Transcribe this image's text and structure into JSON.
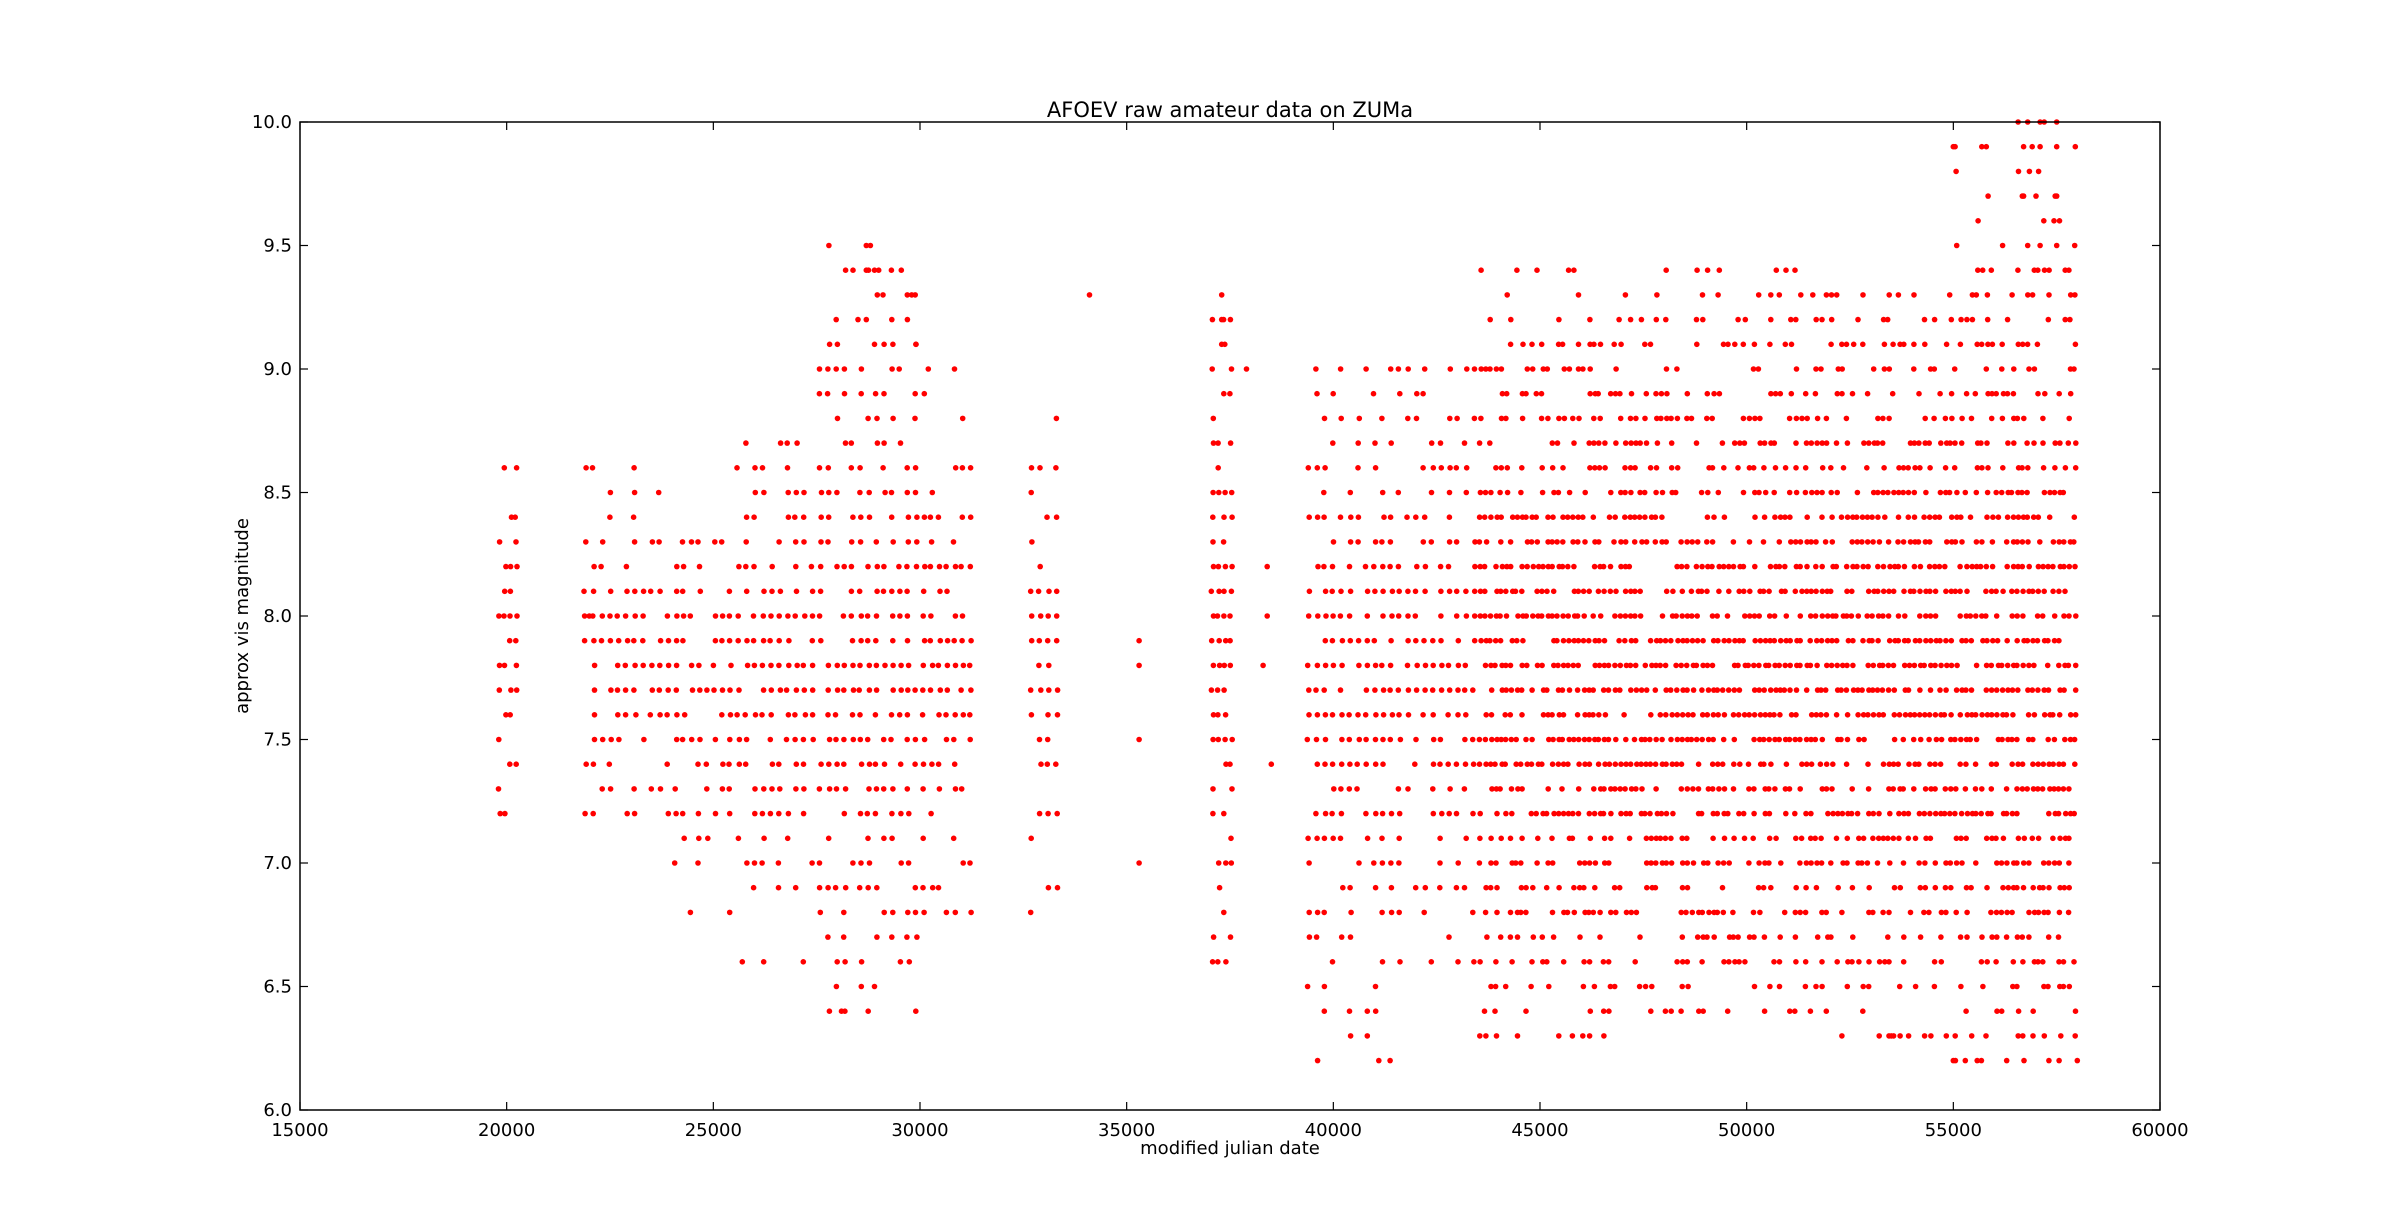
{
  "chart_data": {
    "type": "scatter",
    "title": "AFOEV raw amateur data on ZUMa",
    "xlabel": "modified julian date",
    "ylabel": "approx vis magnitude",
    "xlim": [
      15000,
      60000
    ],
    "ylim": [
      6.0,
      10.0
    ],
    "xticks": [
      15000,
      20000,
      25000,
      30000,
      35000,
      40000,
      45000,
      50000,
      55000,
      60000
    ],
    "xtick_labels": [
      "15000",
      "20000",
      "25000",
      "30000",
      "35000",
      "40000",
      "45000",
      "50000",
      "55000",
      "60000"
    ],
    "yticks": [
      6.0,
      6.5,
      7.0,
      7.5,
      8.0,
      8.5,
      9.0,
      9.5,
      10.0
    ],
    "ytick_labels": [
      "6.0",
      "6.5",
      "7.0",
      "7.5",
      "8.0",
      "8.5",
      "9.0",
      "9.5",
      "10.0"
    ],
    "grid": false,
    "legend": "none",
    "marker_color": "#ff0000",
    "segments": [
      {
        "x_start": 19750,
        "x_end": 20300,
        "y_min": 7.2,
        "y_max": 8.6
      },
      {
        "x_start": 21800,
        "x_end": 24000,
        "y_min": 7.2,
        "y_max": 8.6
      },
      {
        "x_start": 24000,
        "x_end": 25500,
        "y_min": 6.8,
        "y_max": 8.3
      },
      {
        "x_start": 25500,
        "x_end": 27500,
        "y_min": 6.6,
        "y_max": 8.7
      },
      {
        "x_start": 27500,
        "x_end": 30000,
        "y_min": 6.4,
        "y_max": 9.5
      },
      {
        "x_start": 30000,
        "x_end": 31300,
        "y_min": 6.8,
        "y_max": 9.0
      },
      {
        "x_start": 32600,
        "x_end": 33400,
        "y_min": 6.8,
        "y_max": 8.8
      },
      {
        "x_start": 37000,
        "x_end": 37600,
        "y_min": 6.6,
        "y_max": 9.3
      },
      {
        "x_start": 39300,
        "x_end": 41500,
        "y_min": 6.2,
        "y_max": 9.0
      },
      {
        "x_start": 41500,
        "x_end": 43500,
        "y_min": 6.6,
        "y_max": 9.0
      },
      {
        "x_start": 43500,
        "x_end": 47500,
        "y_min": 6.3,
        "y_max": 9.4
      },
      {
        "x_start": 47500,
        "x_end": 51500,
        "y_min": 6.4,
        "y_max": 9.4
      },
      {
        "x_start": 51500,
        "x_end": 55000,
        "y_min": 6.3,
        "y_max": 9.3
      },
      {
        "x_start": 55000,
        "x_end": 58000,
        "y_min": 6.2,
        "y_max": 10.0
      }
    ],
    "points": [
      [
        22000,
        8.0
      ],
      [
        34100,
        9.3
      ],
      [
        33300,
        8.8
      ],
      [
        35300,
        7.9
      ],
      [
        35300,
        7.8
      ],
      [
        35300,
        7.5
      ],
      [
        35300,
        7.0
      ],
      [
        37900,
        9.0
      ],
      [
        38400,
        8.2
      ],
      [
        38400,
        8.0
      ],
      [
        38300,
        7.8
      ],
      [
        38500,
        7.4
      ],
      [
        28700,
        9.5
      ],
      [
        28800,
        9.5
      ],
      [
        28500,
        9.2
      ],
      [
        28700,
        9.2
      ],
      [
        28900,
        9.1
      ],
      [
        28700,
        9.4
      ],
      [
        28900,
        9.4
      ],
      [
        29000,
        9.4
      ],
      [
        28900,
        6.5
      ],
      [
        28100,
        6.4
      ],
      [
        25700,
        6.6
      ],
      [
        29800,
        9.3
      ],
      [
        29900,
        9.1
      ],
      [
        30200,
        9.0
      ],
      [
        30100,
        6.8
      ],
      [
        37300,
        9.3
      ],
      [
        37300,
        9.2
      ],
      [
        37300,
        9.1
      ],
      [
        37400,
        6.6
      ],
      [
        48800,
        9.4
      ],
      [
        51600,
        9.3
      ],
      [
        55600,
        9.6
      ],
      [
        55000,
        9.9
      ],
      [
        56800,
        10.0
      ],
      [
        57100,
        10.0
      ],
      [
        57500,
        10.0
      ],
      [
        56700,
        9.9
      ],
      [
        57100,
        9.9
      ],
      [
        57500,
        9.9
      ],
      [
        56700,
        9.7
      ],
      [
        57000,
        9.7
      ],
      [
        57500,
        9.7
      ],
      [
        56800,
        9.5
      ],
      [
        57100,
        9.5
      ],
      [
        57500,
        9.5
      ],
      [
        41100,
        6.2
      ],
      [
        55000,
        6.2
      ],
      [
        58000,
        6.2
      ],
      [
        46200,
        6.3
      ],
      [
        53500,
        6.3
      ],
      [
        57200,
        6.3
      ],
      [
        57600,
        6.3
      ]
    ]
  }
}
